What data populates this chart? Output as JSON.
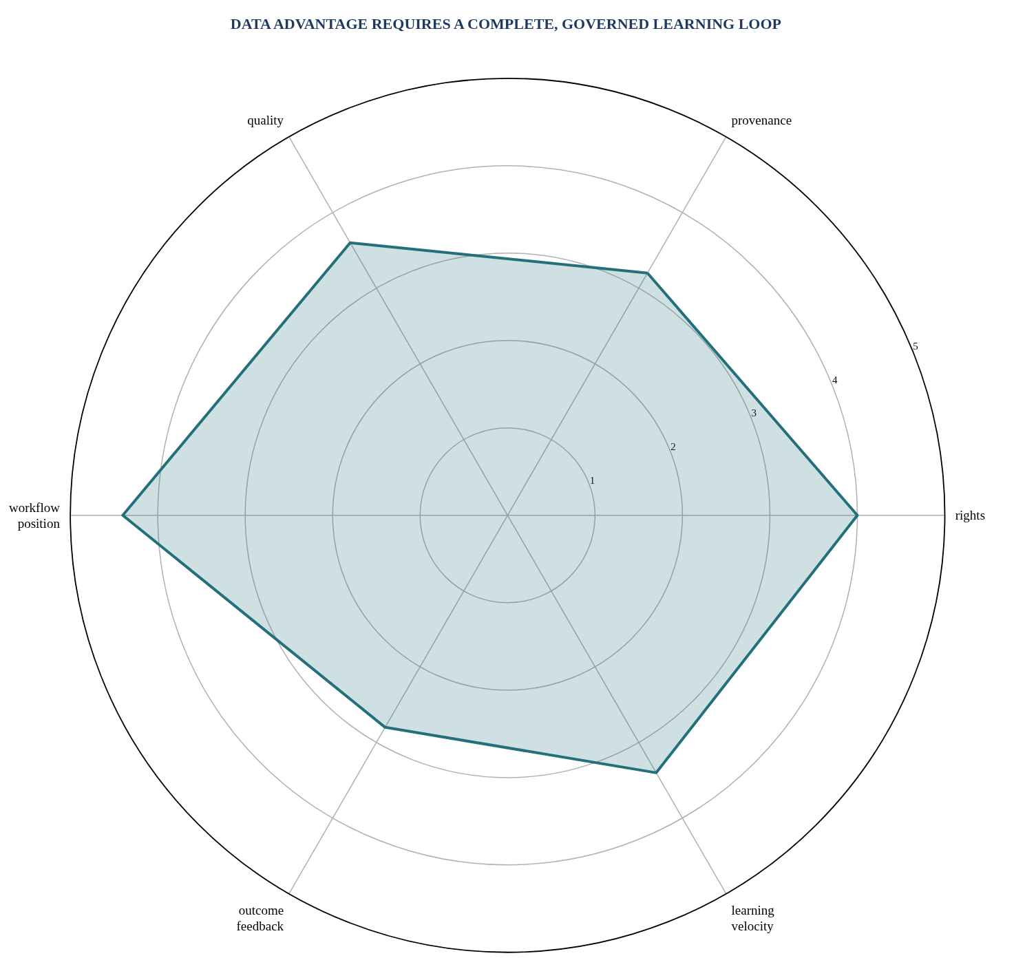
{
  "chart_data": {
    "type": "radar",
    "title": "DATA ADVANTAGE REQUIRES A COMPLETE, GOVERNED LEARNING LOOP",
    "categories": [
      "provenance",
      "rights",
      "learning\nvelocity",
      "outcome\nfeedback",
      "workflow\nposition",
      "quality"
    ],
    "series": [
      {
        "color": "#23707a",
        "values": [
          3.2,
          4.0,
          3.4,
          2.8,
          4.4,
          3.6
        ]
      }
    ],
    "ylim": [
      0,
      5
    ],
    "yticks": [
      1,
      2,
      3,
      4,
      5
    ],
    "grid": true
  }
}
